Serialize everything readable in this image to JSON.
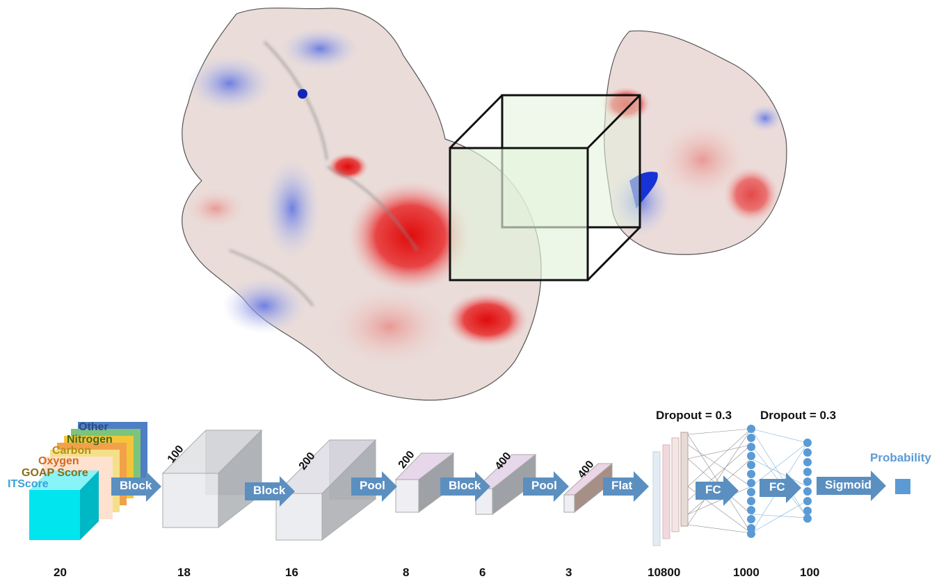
{
  "input_channels": [
    "Other",
    "Nitrogen",
    "Carbon",
    "Oxygen",
    "GOAP Score",
    "ITScore"
  ],
  "channel_colors": {
    "Other": "#3a5f9e",
    "Nitrogen": "#4f7a2a",
    "Carbon": "#c9a227",
    "Oxygen": "#e07b2a",
    "GOAP Score": "#8a6d1a",
    "ITScore": "#3aa0d8"
  },
  "operations": [
    "Block",
    "Block",
    "Pool",
    "Block",
    "Pool",
    "Flat",
    "FC",
    "FC",
    "Sigmoid"
  ],
  "layer_depths": [
    "100",
    "200",
    "200",
    "400",
    "400"
  ],
  "spatial_dims": [
    "20",
    "18",
    "16",
    "8",
    "6",
    "3",
    "10800",
    "1000",
    "100"
  ],
  "dropouts": [
    "Dropout = 0.3",
    "Dropout = 0.3"
  ],
  "output_label": "Probability",
  "colors": {
    "arrow": "#5b8fc0",
    "fc_node": "#5b9bd5",
    "probability": "#5b9bd5",
    "surface_positive": "#6f7fe0",
    "surface_negative": "#e01818",
    "box_fill": "#e3f2dc"
  }
}
